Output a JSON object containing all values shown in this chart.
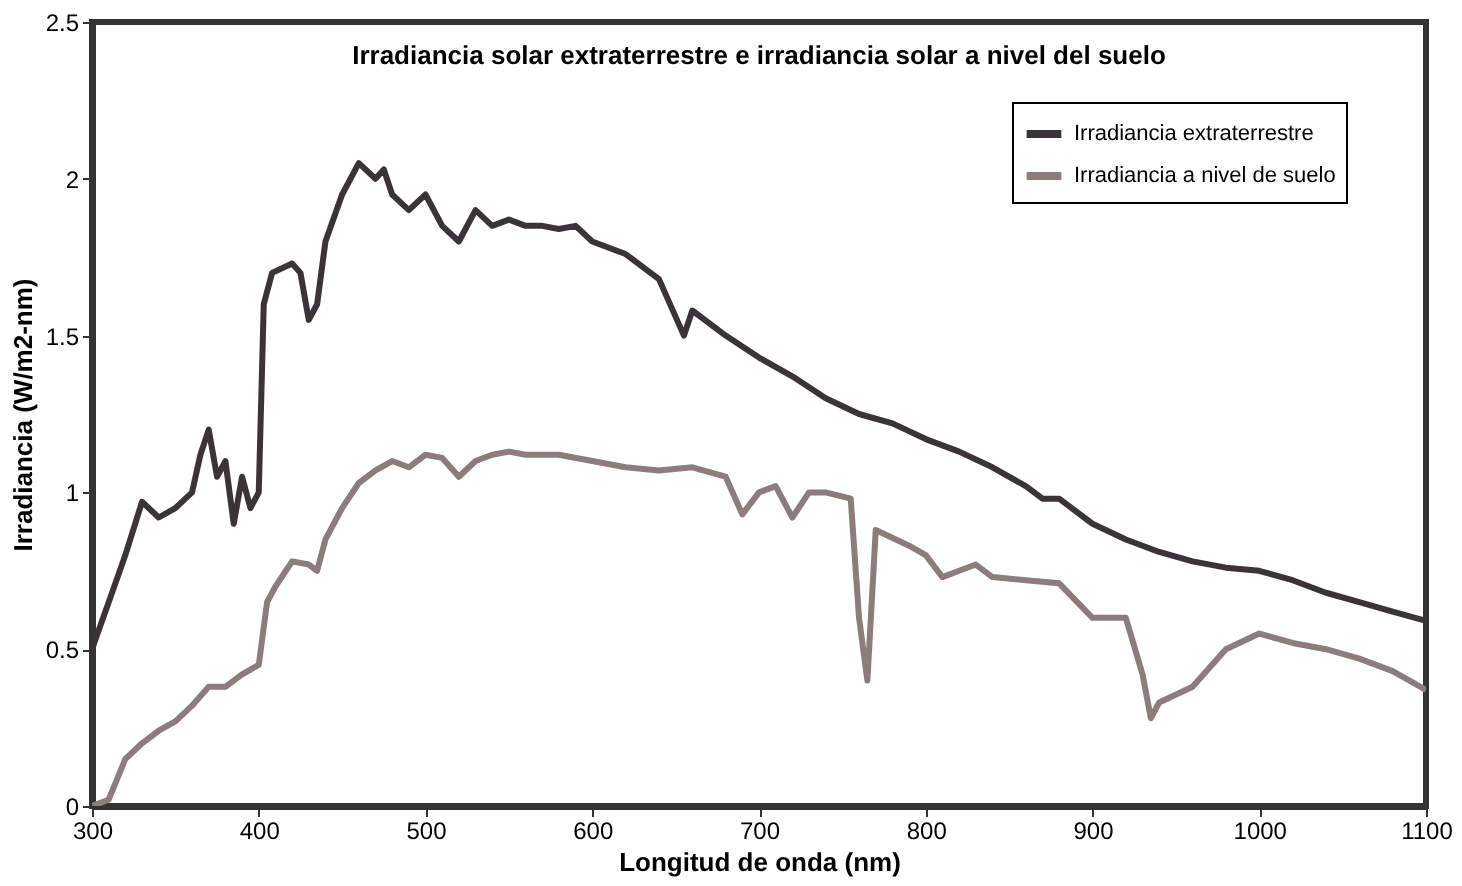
{
  "chart_data": {
    "type": "line",
    "title": "Irradiancia solar extraterrestre e irradiancia solar a nivel del suelo",
    "xlabel": "Longitud de onda (nm)",
    "ylabel": "Irradiancia (W/m2-nm)",
    "xlim": [
      300,
      1100
    ],
    "xticks": [
      300,
      400,
      500,
      600,
      700,
      800,
      900,
      1000,
      1100
    ],
    "ylim": [
      0,
      2.5
    ],
    "yticks": [
      0,
      0.5,
      1,
      1.5,
      2,
      2.5
    ],
    "grid": false,
    "legend": "top right",
    "marker": "none",
    "line_style": "solid",
    "series": [
      {
        "name": "Irradiancia extraterrestre",
        "color": "#3a3438",
        "x": [
          300,
          310,
          320,
          330,
          340,
          350,
          360,
          365,
          370,
          375,
          380,
          385,
          390,
          395,
          400,
          403,
          408,
          420,
          425,
          430,
          435,
          440,
          450,
          460,
          470,
          475,
          480,
          490,
          500,
          510,
          520,
          530,
          540,
          550,
          560,
          570,
          580,
          590,
          600,
          620,
          640,
          655,
          660,
          680,
          700,
          720,
          740,
          760,
          780,
          800,
          820,
          840,
          860,
          870,
          880,
          900,
          920,
          940,
          960,
          980,
          1000,
          1020,
          1040,
          1060,
          1080,
          1100
        ],
        "values": [
          0.5,
          0.65,
          0.8,
          0.97,
          0.92,
          0.95,
          1.0,
          1.12,
          1.2,
          1.05,
          1.1,
          0.9,
          1.05,
          0.95,
          1.0,
          1.6,
          1.7,
          1.73,
          1.7,
          1.55,
          1.6,
          1.8,
          1.95,
          2.05,
          2.0,
          2.03,
          1.95,
          1.9,
          1.95,
          1.85,
          1.8,
          1.9,
          1.85,
          1.87,
          1.85,
          1.85,
          1.84,
          1.85,
          1.8,
          1.76,
          1.68,
          1.5,
          1.58,
          1.5,
          1.43,
          1.37,
          1.3,
          1.25,
          1.22,
          1.17,
          1.13,
          1.08,
          1.02,
          0.98,
          0.98,
          0.9,
          0.85,
          0.81,
          0.78,
          0.76,
          0.75,
          0.72,
          0.68,
          0.65,
          0.62,
          0.59
        ]
      },
      {
        "name": "Irradiancia a nivel de suelo",
        "color": "#8c7c7c",
        "x": [
          300,
          310,
          320,
          330,
          340,
          350,
          360,
          370,
          380,
          390,
          400,
          405,
          410,
          420,
          430,
          435,
          440,
          450,
          460,
          470,
          480,
          490,
          500,
          510,
          520,
          530,
          540,
          550,
          560,
          580,
          600,
          620,
          640,
          660,
          680,
          690,
          700,
          710,
          720,
          730,
          740,
          755,
          760,
          765,
          770,
          790,
          800,
          810,
          820,
          830,
          840,
          860,
          880,
          900,
          920,
          930,
          935,
          940,
          960,
          980,
          1000,
          1020,
          1040,
          1060,
          1080,
          1100
        ],
        "values": [
          0,
          0.02,
          0.15,
          0.2,
          0.24,
          0.27,
          0.32,
          0.38,
          0.38,
          0.42,
          0.45,
          0.65,
          0.7,
          0.78,
          0.77,
          0.75,
          0.85,
          0.95,
          1.03,
          1.07,
          1.1,
          1.08,
          1.12,
          1.11,
          1.05,
          1.1,
          1.12,
          1.13,
          1.12,
          1.12,
          1.1,
          1.08,
          1.07,
          1.08,
          1.05,
          0.93,
          1.0,
          1.02,
          0.92,
          1.0,
          1.0,
          0.98,
          0.6,
          0.4,
          0.88,
          0.83,
          0.8,
          0.73,
          0.75,
          0.77,
          0.73,
          0.72,
          0.71,
          0.6,
          0.6,
          0.42,
          0.28,
          0.33,
          0.38,
          0.5,
          0.55,
          0.52,
          0.5,
          0.47,
          0.43,
          0.37
        ]
      }
    ]
  }
}
